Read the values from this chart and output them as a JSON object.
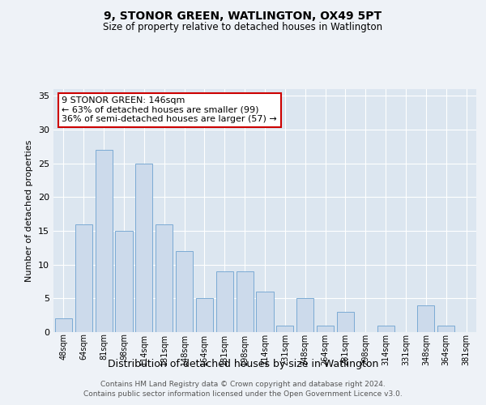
{
  "title": "9, STONOR GREEN, WATLINGTON, OX49 5PT",
  "subtitle": "Size of property relative to detached houses in Watlington",
  "xlabel": "Distribution of detached houses by size in Watlington",
  "ylabel": "Number of detached properties",
  "categories": [
    "48sqm",
    "64sqm",
    "81sqm",
    "98sqm",
    "114sqm",
    "131sqm",
    "148sqm",
    "164sqm",
    "181sqm",
    "198sqm",
    "214sqm",
    "231sqm",
    "248sqm",
    "264sqm",
    "281sqm",
    "298sqm",
    "314sqm",
    "331sqm",
    "348sqm",
    "364sqm",
    "381sqm"
  ],
  "values": [
    2,
    16,
    27,
    15,
    25,
    16,
    12,
    5,
    9,
    9,
    6,
    1,
    5,
    1,
    3,
    0,
    1,
    0,
    4,
    1,
    0
  ],
  "bar_color": "#ccdaeb",
  "bar_edge_color": "#7baad4",
  "annotation_text": "9 STONOR GREEN: 146sqm\n← 63% of detached houses are smaller (99)\n36% of semi-detached houses are larger (57) →",
  "annotation_box_color": "#ffffff",
  "annotation_border_color": "#cc0000",
  "ylim": [
    0,
    36
  ],
  "yticks": [
    0,
    5,
    10,
    15,
    20,
    25,
    30,
    35
  ],
  "background_color": "#dce6f0",
  "fig_background_color": "#eef2f7",
  "grid_color": "#ffffff",
  "footer_line1": "Contains HM Land Registry data © Crown copyright and database right 2024.",
  "footer_line2": "Contains public sector information licensed under the Open Government Licence v3.0."
}
